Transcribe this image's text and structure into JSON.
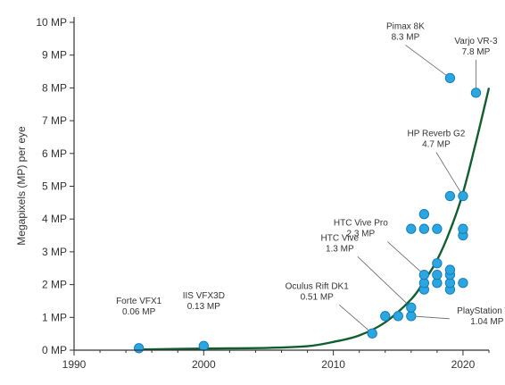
{
  "chart_data": {
    "type": "scatter",
    "title": "",
    "xlabel": "",
    "ylabel": "Megapixels (MP) per eye",
    "xlim": [
      1990,
      2022
    ],
    "ylim": [
      0,
      10
    ],
    "x_ticks": [
      "1990",
      "2000",
      "2010",
      "2020"
    ],
    "y_ticks": [
      "0 MP",
      "1 MP",
      "2 MP",
      "3 MP",
      "4 MP",
      "5 MP",
      "6 MP",
      "7 MP",
      "8 MP",
      "9 MP",
      "10 MP"
    ],
    "grid": false,
    "colors": {
      "point": "#2aa7e0",
      "point_edge": "#1577b5",
      "trend": "#0f5f2e",
      "axis": "#333333"
    },
    "points": [
      {
        "x": 1995,
        "y": 0.06
      },
      {
        "x": 2000,
        "y": 0.13
      },
      {
        "x": 2013,
        "y": 0.51
      },
      {
        "x": 2014,
        "y": 1.04
      },
      {
        "x": 2015,
        "y": 1.04
      },
      {
        "x": 2016,
        "y": 1.04
      },
      {
        "x": 2016,
        "y": 1.3
      },
      {
        "x": 2016,
        "y": 3.7
      },
      {
        "x": 2017,
        "y": 1.85
      },
      {
        "x": 2017,
        "y": 2.05
      },
      {
        "x": 2017,
        "y": 2.3
      },
      {
        "x": 2017,
        "y": 3.7
      },
      {
        "x": 2017,
        "y": 4.15
      },
      {
        "x": 2018,
        "y": 2.05
      },
      {
        "x": 2018,
        "y": 2.3
      },
      {
        "x": 2018,
        "y": 2.65
      },
      {
        "x": 2018,
        "y": 3.7
      },
      {
        "x": 2019,
        "y": 1.85
      },
      {
        "x": 2019,
        "y": 2.05
      },
      {
        "x": 2019,
        "y": 2.3
      },
      {
        "x": 2019,
        "y": 2.45
      },
      {
        "x": 2019,
        "y": 4.7
      },
      {
        "x": 2019,
        "y": 8.3
      },
      {
        "x": 2020,
        "y": 2.05
      },
      {
        "x": 2020,
        "y": 3.5
      },
      {
        "x": 2020,
        "y": 3.7
      },
      {
        "x": 2020,
        "y": 4.7
      },
      {
        "x": 2021,
        "y": 7.85
      }
    ],
    "trend_line": [
      {
        "x": 1995,
        "y": 0.02
      },
      {
        "x": 2000,
        "y": 0.05
      },
      {
        "x": 2005,
        "y": 0.07
      },
      {
        "x": 2008,
        "y": 0.12
      },
      {
        "x": 2010,
        "y": 0.25
      },
      {
        "x": 2012,
        "y": 0.45
      },
      {
        "x": 2014,
        "y": 0.85
      },
      {
        "x": 2016,
        "y": 1.55
      },
      {
        "x": 2017,
        "y": 2.1
      },
      {
        "x": 2018,
        "y": 2.75
      },
      {
        "x": 2019,
        "y": 3.65
      },
      {
        "x": 2020,
        "y": 4.8
      },
      {
        "x": 2021,
        "y": 6.35
      },
      {
        "x": 2022,
        "y": 8.0
      }
    ],
    "annotations": [
      {
        "name": "Forte VFX1",
        "value": "0.06 MP",
        "point_x": 1995,
        "point_y": 0.06
      },
      {
        "name": "IIS VFX3D",
        "value": "0.13 MP",
        "point_x": 2000,
        "point_y": 0.13
      },
      {
        "name": "Oculus Rift DK1",
        "value": "0.51 MP",
        "point_x": 2013,
        "point_y": 0.51
      },
      {
        "name": "HTC Vive",
        "value": "1.3 MP",
        "point_x": 2016,
        "point_y": 1.3
      },
      {
        "name": "HTC Vive Pro",
        "value": "2.3 MP",
        "point_x": 2017,
        "point_y": 2.3
      },
      {
        "name": "PlayStation VR",
        "value": "1.04 MP",
        "point_x": 2016,
        "point_y": 1.04
      },
      {
        "name": "HP Reverb G2",
        "value": "4.7 MP",
        "point_x": 2020,
        "point_y": 4.7
      },
      {
        "name": "Pimax 8K",
        "value": "8.3 MP",
        "point_x": 2019,
        "point_y": 8.3
      },
      {
        "name": "Varjo VR-3",
        "value": "7.8 MP",
        "point_x": 2021,
        "point_y": 7.85
      }
    ]
  }
}
